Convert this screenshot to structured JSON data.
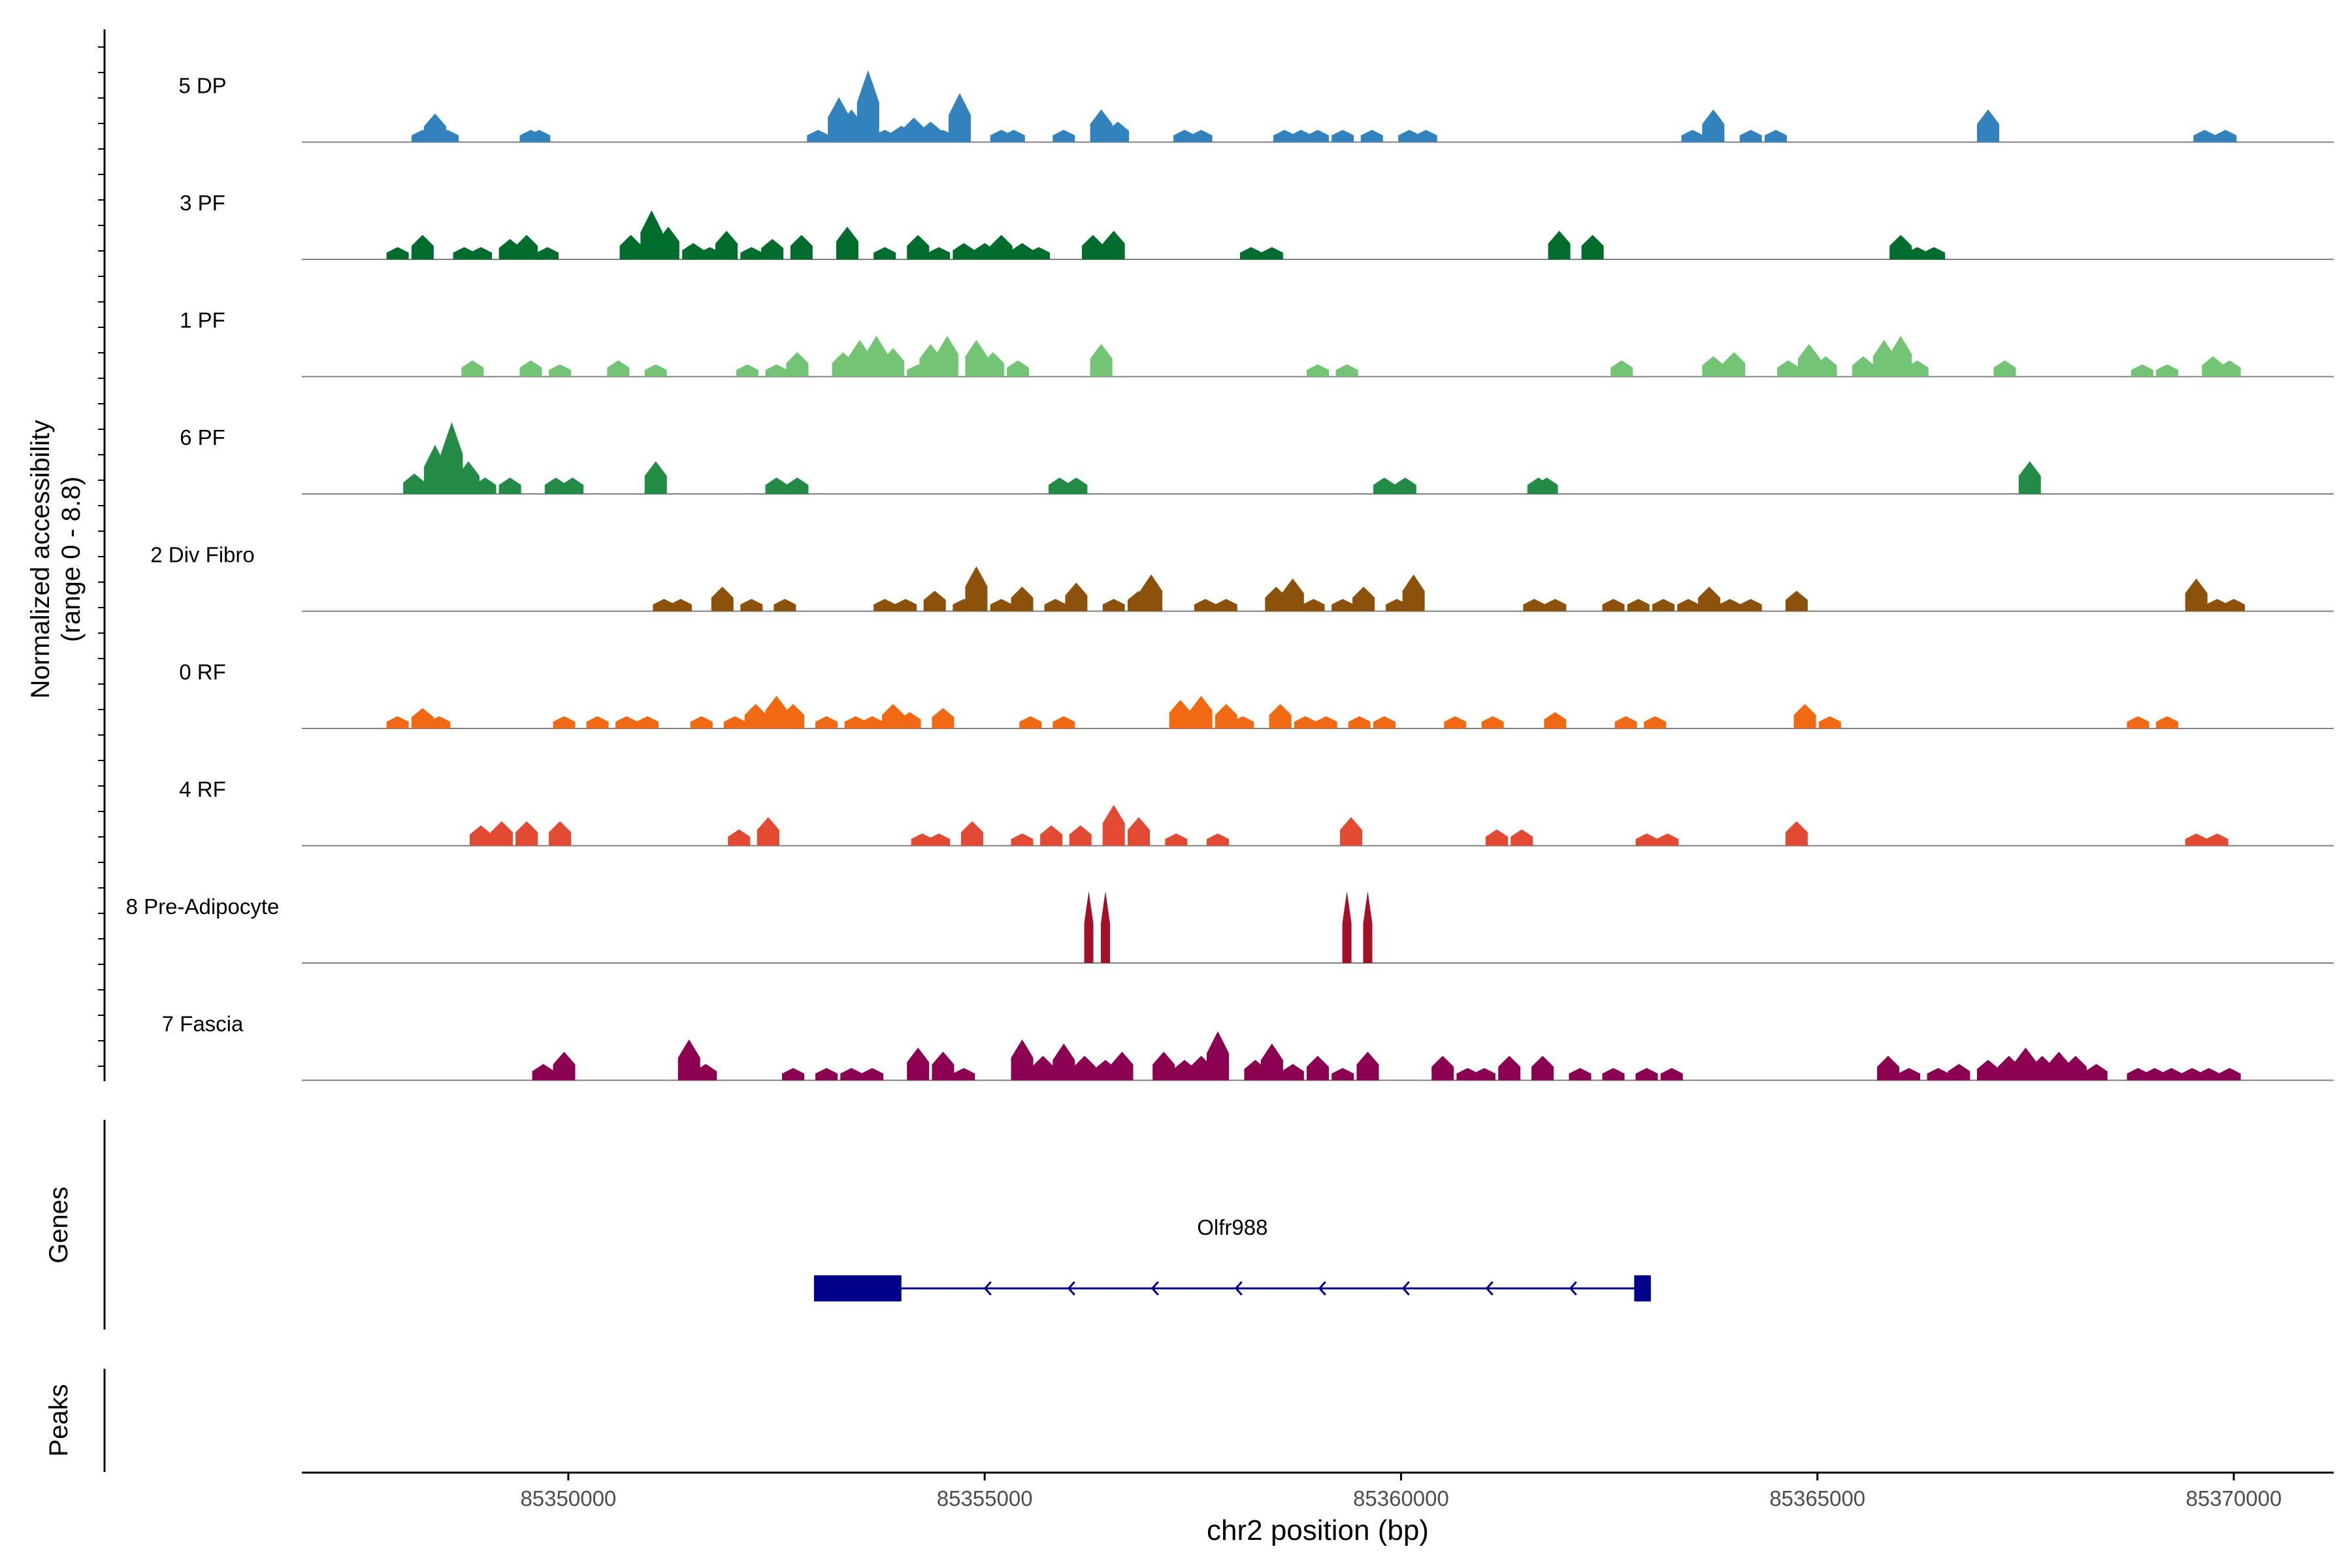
{
  "chart_data": {
    "type": "coverage-track",
    "title": "",
    "xlabel": "chr2 position (bp)",
    "ylabel_line1": "Normalized accessibility",
    "ylabel_line2": "(range 0 - 8.8)",
    "ylim": [
      0,
      8.8
    ],
    "xlim": [
      85346800,
      85371200
    ],
    "x_ticks": [
      85350000,
      85355000,
      85360000,
      85365000,
      85370000
    ],
    "x_tick_labels": [
      "85350000",
      "85355000",
      "85360000",
      "85365000",
      "85370000"
    ],
    "genes_label": "Genes",
    "peaks_label": "Peaks",
    "gene": {
      "name": "Olfr988",
      "start": 85352950,
      "end": 85363000,
      "strand": "-",
      "color": "#00008B",
      "exons": [
        [
          85352950,
          85354000
        ],
        [
          85362800,
          85363000
        ]
      ]
    },
    "tracks": [
      {
        "name": "5 DP",
        "color": "#3182BD",
        "peaks": [
          [
            85348250,
            1.5
          ],
          [
            85348400,
            3.5
          ],
          [
            85348550,
            1.5
          ],
          [
            85349550,
            1.5
          ],
          [
            85349650,
            1.5
          ],
          [
            85353000,
            1.5
          ],
          [
            85353250,
            5.5
          ],
          [
            85353400,
            4.0
          ],
          [
            85353600,
            8.8
          ],
          [
            85353800,
            1.5
          ],
          [
            85354000,
            2.0
          ],
          [
            85354150,
            3.0
          ],
          [
            85354350,
            2.5
          ],
          [
            85354500,
            1.5
          ],
          [
            85354700,
            6.0
          ],
          [
            85355200,
            1.5
          ],
          [
            85355350,
            1.5
          ],
          [
            85355950,
            1.5
          ],
          [
            85356400,
            4.0
          ],
          [
            85356600,
            2.5
          ],
          [
            85357400,
            1.5
          ],
          [
            85357600,
            1.5
          ],
          [
            85358600,
            1.5
          ],
          [
            85358800,
            1.5
          ],
          [
            85359000,
            1.5
          ],
          [
            85359300,
            1.5
          ],
          [
            85359650,
            1.5
          ],
          [
            85360100,
            1.5
          ],
          [
            85360300,
            1.5
          ],
          [
            85363500,
            1.5
          ],
          [
            85363750,
            4.0
          ],
          [
            85364200,
            1.5
          ],
          [
            85364500,
            1.5
          ],
          [
            85367050,
            4.0
          ],
          [
            85369650,
            1.5
          ],
          [
            85369900,
            1.5
          ]
        ]
      },
      {
        "name": "3 PF",
        "color": "#006D2C",
        "peaks": [
          [
            85347950,
            1.5
          ],
          [
            85348250,
            3.0
          ],
          [
            85348750,
            1.5
          ],
          [
            85348950,
            1.5
          ],
          [
            85349300,
            2.5
          ],
          [
            85349500,
            3.0
          ],
          [
            85349750,
            1.5
          ],
          [
            85350750,
            3.0
          ],
          [
            85351000,
            6.0
          ],
          [
            85351200,
            4.0
          ],
          [
            85351500,
            2.0
          ],
          [
            85351700,
            1.5
          ],
          [
            85351900,
            3.5
          ],
          [
            85352200,
            1.5
          ],
          [
            85352450,
            2.5
          ],
          [
            85352800,
            3.0
          ],
          [
            85353350,
            4.0
          ],
          [
            85353800,
            1.5
          ],
          [
            85354200,
            3.0
          ],
          [
            85354450,
            1.5
          ],
          [
            85354750,
            2.0
          ],
          [
            85355000,
            2.0
          ],
          [
            85355200,
            3.0
          ],
          [
            85355450,
            2.0
          ],
          [
            85355650,
            1.5
          ],
          [
            85356300,
            3.0
          ],
          [
            85356550,
            3.5
          ],
          [
            85358200,
            1.5
          ],
          [
            85358450,
            1.5
          ],
          [
            85361900,
            3.5
          ],
          [
            85362300,
            3.0
          ],
          [
            85366000,
            3.0
          ],
          [
            85366200,
            1.5
          ],
          [
            85366400,
            1.5
          ]
        ]
      },
      {
        "name": "1 PF",
        "color": "#74C476",
        "peaks": [
          [
            85348850,
            2.0
          ],
          [
            85349550,
            2.0
          ],
          [
            85349900,
            1.5
          ],
          [
            85350600,
            2.0
          ],
          [
            85351050,
            1.5
          ],
          [
            85352150,
            1.5
          ],
          [
            85352500,
            1.5
          ],
          [
            85352750,
            3.0
          ],
          [
            85353300,
            3.0
          ],
          [
            85353500,
            4.5
          ],
          [
            85353700,
            5.0
          ],
          [
            85353900,
            3.5
          ],
          [
            85354200,
            1.5
          ],
          [
            85354350,
            4.0
          ],
          [
            85354550,
            5.0
          ],
          [
            85354900,
            4.5
          ],
          [
            85355100,
            3.0
          ],
          [
            85355400,
            2.0
          ],
          [
            85356400,
            4.0
          ],
          [
            85359000,
            1.5
          ],
          [
            85359350,
            1.5
          ],
          [
            85362650,
            2.0
          ],
          [
            85363750,
            2.5
          ],
          [
            85364000,
            3.0
          ],
          [
            85364650,
            2.0
          ],
          [
            85364900,
            4.0
          ],
          [
            85365100,
            2.5
          ],
          [
            85365550,
            2.5
          ],
          [
            85365800,
            4.5
          ],
          [
            85366000,
            5.0
          ],
          [
            85366200,
            2.0
          ],
          [
            85367250,
            2.0
          ],
          [
            85368900,
            1.5
          ],
          [
            85369200,
            1.5
          ],
          [
            85369750,
            2.5
          ],
          [
            85369950,
            2.0
          ]
        ]
      },
      {
        "name": "6 PF",
        "color": "#238B45",
        "peaks": [
          [
            85348150,
            2.5
          ],
          [
            85348400,
            6.0
          ],
          [
            85348600,
            8.8
          ],
          [
            85348800,
            4.0
          ],
          [
            85349000,
            2.0
          ],
          [
            85349300,
            2.0
          ],
          [
            85349850,
            2.0
          ],
          [
            85350050,
            2.0
          ],
          [
            85351050,
            4.0
          ],
          [
            85352500,
            2.0
          ],
          [
            85352750,
            2.0
          ],
          [
            85355900,
            2.0
          ],
          [
            85356100,
            2.0
          ],
          [
            85359800,
            2.0
          ],
          [
            85360050,
            2.0
          ],
          [
            85361650,
            2.0
          ],
          [
            85361750,
            2.0
          ],
          [
            85367550,
            4.0
          ]
        ]
      },
      {
        "name": "2 Div Fibro",
        "color": "#8C510A",
        "peaks": [
          [
            85351150,
            1.5
          ],
          [
            85351350,
            1.5
          ],
          [
            85351850,
            3.0
          ],
          [
            85352200,
            1.5
          ],
          [
            85352600,
            1.5
          ],
          [
            85353800,
            1.5
          ],
          [
            85354050,
            1.5
          ],
          [
            85354400,
            2.5
          ],
          [
            85354750,
            1.5
          ],
          [
            85354900,
            5.5
          ],
          [
            85355200,
            1.5
          ],
          [
            85355450,
            3.0
          ],
          [
            85355850,
            1.5
          ],
          [
            85356100,
            3.5
          ],
          [
            85356550,
            1.5
          ],
          [
            85356850,
            2.5
          ],
          [
            85357000,
            4.5
          ],
          [
            85357650,
            1.5
          ],
          [
            85357900,
            1.5
          ],
          [
            85358500,
            3.0
          ],
          [
            85358700,
            4.0
          ],
          [
            85358950,
            1.5
          ],
          [
            85359300,
            1.5
          ],
          [
            85359550,
            3.0
          ],
          [
            85359950,
            1.5
          ],
          [
            85360150,
            4.5
          ],
          [
            85361600,
            1.5
          ],
          [
            85361850,
            1.5
          ],
          [
            85362550,
            1.5
          ],
          [
            85362850,
            1.5
          ],
          [
            85363150,
            1.5
          ],
          [
            85363450,
            1.5
          ],
          [
            85363700,
            3.0
          ],
          [
            85363950,
            1.5
          ],
          [
            85364200,
            1.5
          ],
          [
            85364750,
            2.5
          ],
          [
            85369550,
            4.0
          ],
          [
            85369800,
            1.5
          ],
          [
            85370000,
            1.5
          ]
        ]
      },
      {
        "name": "0 RF",
        "color": "#F16913",
        "peaks": [
          [
            85347950,
            1.5
          ],
          [
            85348250,
            2.5
          ],
          [
            85348450,
            1.5
          ],
          [
            85349950,
            1.5
          ],
          [
            85350350,
            1.5
          ],
          [
            85350700,
            1.5
          ],
          [
            85350950,
            1.5
          ],
          [
            85351600,
            1.5
          ],
          [
            85352000,
            1.5
          ],
          [
            85352250,
            3.0
          ],
          [
            85352500,
            4.0
          ],
          [
            85352700,
            3.0
          ],
          [
            85353100,
            1.5
          ],
          [
            85353450,
            1.5
          ],
          [
            85353650,
            1.5
          ],
          [
            85353900,
            3.0
          ],
          [
            85354100,
            2.0
          ],
          [
            85354500,
            2.5
          ],
          [
            85355550,
            1.5
          ],
          [
            85355950,
            1.5
          ],
          [
            85357350,
            3.5
          ],
          [
            85357600,
            4.0
          ],
          [
            85357900,
            3.0
          ],
          [
            85358100,
            1.5
          ],
          [
            85358550,
            3.0
          ],
          [
            85358850,
            1.5
          ],
          [
            85359100,
            1.5
          ],
          [
            85359500,
            1.5
          ],
          [
            85359800,
            1.5
          ],
          [
            85360650,
            1.5
          ],
          [
            85361100,
            1.5
          ],
          [
            85361850,
            2.0
          ],
          [
            85362700,
            1.5
          ],
          [
            85363050,
            1.5
          ],
          [
            85364850,
            3.0
          ],
          [
            85365150,
            1.5
          ],
          [
            85368850,
            1.5
          ],
          [
            85369200,
            1.5
          ]
        ]
      },
      {
        "name": "4 RF",
        "color": "#E34A33",
        "peaks": [
          [
            85348950,
            2.5
          ],
          [
            85349200,
            3.0
          ],
          [
            85349500,
            3.0
          ],
          [
            85349900,
            3.0
          ],
          [
            85352050,
            2.0
          ],
          [
            85352400,
            3.5
          ],
          [
            85354250,
            1.5
          ],
          [
            85354450,
            1.5
          ],
          [
            85354850,
            3.0
          ],
          [
            85355450,
            1.5
          ],
          [
            85355800,
            2.5
          ],
          [
            85356150,
            2.5
          ],
          [
            85356550,
            5.0
          ],
          [
            85356850,
            3.5
          ],
          [
            85357300,
            1.5
          ],
          [
            85357800,
            1.5
          ],
          [
            85359400,
            3.5
          ],
          [
            85361150,
            2.0
          ],
          [
            85361450,
            2.0
          ],
          [
            85362950,
            1.5
          ],
          [
            85363200,
            1.5
          ],
          [
            85364750,
            3.0
          ],
          [
            85369550,
            1.5
          ],
          [
            85369800,
            1.5
          ]
        ]
      },
      {
        "name": "8 Pre-Adipocyte",
        "color": "#A50F27",
        "peaks": [
          [
            85356250,
            8.8
          ],
          [
            85356450,
            8.8
          ],
          [
            85359350,
            8.8
          ],
          [
            85359600,
            8.8
          ]
        ]
      },
      {
        "name": "7 Fascia",
        "color": "#8C0052",
        "peaks": [
          [
            85349700,
            2.0
          ],
          [
            85349950,
            3.5
          ],
          [
            85351450,
            5.0
          ],
          [
            85351650,
            2.0
          ],
          [
            85352700,
            1.5
          ],
          [
            85353100,
            1.5
          ],
          [
            85353400,
            1.5
          ],
          [
            85353650,
            1.5
          ],
          [
            85354200,
            4.0
          ],
          [
            85354500,
            3.5
          ],
          [
            85354750,
            1.5
          ],
          [
            85355450,
            5.0
          ],
          [
            85355700,
            3.0
          ],
          [
            85355950,
            4.5
          ],
          [
            85356200,
            3.0
          ],
          [
            85356450,
            2.5
          ],
          [
            85356650,
            3.5
          ],
          [
            85357150,
            3.5
          ],
          [
            85357400,
            2.5
          ],
          [
            85357600,
            3.0
          ],
          [
            85357800,
            6.0
          ],
          [
            85358250,
            2.5
          ],
          [
            85358450,
            4.5
          ],
          [
            85358700,
            2.0
          ],
          [
            85359000,
            3.0
          ],
          [
            85359300,
            1.5
          ],
          [
            85359600,
            3.5
          ],
          [
            85360500,
            3.0
          ],
          [
            85360800,
            1.5
          ],
          [
            85361000,
            1.5
          ],
          [
            85361300,
            3.0
          ],
          [
            85361700,
            3.0
          ],
          [
            85362150,
            1.5
          ],
          [
            85362550,
            1.5
          ],
          [
            85362950,
            1.5
          ],
          [
            85363250,
            1.5
          ],
          [
            85365850,
            3.0
          ],
          [
            85366100,
            1.5
          ],
          [
            85366450,
            1.5
          ],
          [
            85366700,
            2.0
          ],
          [
            85367050,
            2.5
          ],
          [
            85367300,
            3.0
          ],
          [
            85367500,
            4.0
          ],
          [
            85367700,
            3.0
          ],
          [
            85367900,
            3.5
          ],
          [
            85368100,
            3.0
          ],
          [
            85368350,
            2.0
          ],
          [
            85368850,
            1.5
          ],
          [
            85369050,
            1.5
          ],
          [
            85369250,
            1.5
          ],
          [
            85369500,
            1.5
          ],
          [
            85369700,
            1.5
          ],
          [
            85369950,
            1.5
          ]
        ]
      }
    ]
  }
}
